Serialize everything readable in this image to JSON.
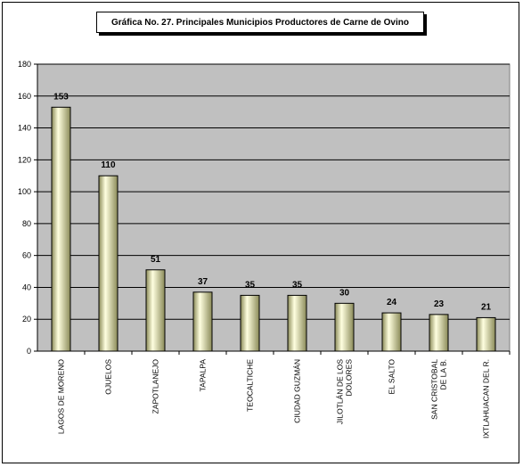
{
  "chart_data": {
    "type": "bar",
    "title": "Gráfica No. 27. Principales Municipios Productores de Carne de Ovino",
    "xlabel": "",
    "ylabel": "",
    "ylim": [
      0,
      180
    ],
    "yticks": [
      0,
      20,
      40,
      60,
      80,
      100,
      120,
      140,
      160,
      180
    ],
    "grid": true,
    "categories": [
      "LAGOS DE MORENO",
      "OJUELOS",
      "ZAPOTLANEJO",
      "TAPALPA",
      "TEOCALTICHE",
      "CIUDAD GUZMÁN",
      "JILOTLÁN DE LOS DOLORES",
      "EL SALTO",
      "SAN CRISTOBAL DE LA B.",
      "IXTLAHUACAN DEL R."
    ],
    "values": [
      153,
      110,
      51,
      37,
      35,
      35,
      30,
      24,
      23,
      21
    ],
    "colors": {
      "plot_bg": "#c0c0c0",
      "bar_light": "#ffffe0",
      "bar_dark": "#8a8a58",
      "grid": "#000000"
    }
  }
}
